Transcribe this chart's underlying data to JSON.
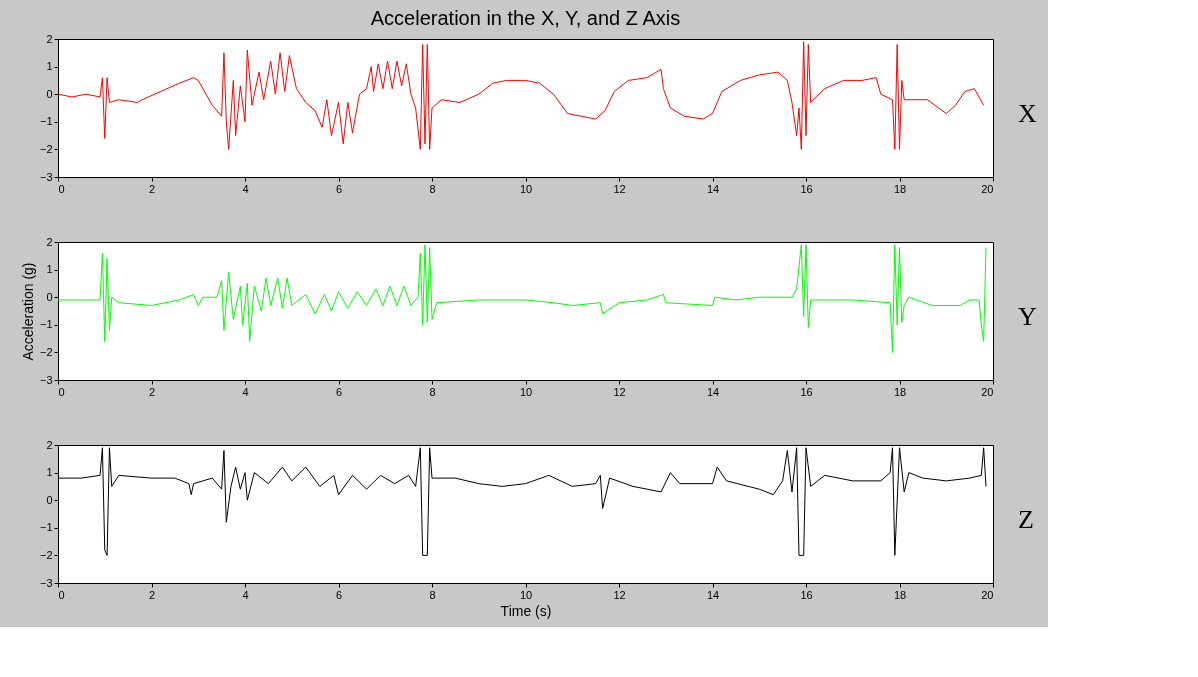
{
  "chart_data": [
    {
      "type": "line",
      "title": "Acceleration in the X, Y, and Z Axis",
      "annotations": [
        "X"
      ],
      "grid": false,
      "xlim": [
        0,
        20
      ],
      "xticks": [
        0,
        2,
        4,
        6,
        8,
        10,
        12,
        14,
        16,
        18,
        20
      ],
      "ylim": [
        -3,
        2
      ],
      "yticks": [
        -3,
        -2,
        -1,
        0,
        1,
        2
      ],
      "x": [
        0,
        0.3,
        0.6,
        0.9,
        0.95,
        1.0,
        1.05,
        1.1,
        1.3,
        1.7,
        1.8,
        2.2,
        2.6,
        2.9,
        3.0,
        3.1,
        3.3,
        3.5,
        3.55,
        3.6,
        3.65,
        3.75,
        3.8,
        3.9,
        4.0,
        4.05,
        4.15,
        4.3,
        4.4,
        4.55,
        4.65,
        4.75,
        4.85,
        4.95,
        5.1,
        5.3,
        5.5,
        5.65,
        5.75,
        5.85,
        6.0,
        6.1,
        6.2,
        6.3,
        6.45,
        6.6,
        6.7,
        6.75,
        6.85,
        6.95,
        7.05,
        7.15,
        7.25,
        7.35,
        7.45,
        7.55,
        7.65,
        7.75,
        7.8,
        7.85,
        7.9,
        7.95,
        8.0,
        8.2,
        8.6,
        9.0,
        9.3,
        9.6,
        10.0,
        10.3,
        10.6,
        10.9,
        11.2,
        11.5,
        11.7,
        11.9,
        12.2,
        12.6,
        12.9,
        12.95,
        13.1,
        13.4,
        13.8,
        14.0,
        14.2,
        14.6,
        15.0,
        15.4,
        15.6,
        15.7,
        15.8,
        15.85,
        15.9,
        15.95,
        16.0,
        16.05,
        16.1,
        16.4,
        16.8,
        17.2,
        17.5,
        17.6,
        17.85,
        17.9,
        17.95,
        18.0,
        18.05,
        18.1,
        18.6,
        19.0,
        19.2,
        19.4,
        19.6,
        19.8
      ],
      "series": [
        {
          "color": "#ff0000",
          "values": [
            0,
            -0.1,
            0,
            -0.1,
            0.6,
            -1.6,
            0.6,
            -0.3,
            -0.2,
            -0.3,
            -0.2,
            0.1,
            0.4,
            0.6,
            0.5,
            0.2,
            -0.4,
            -0.8,
            1.5,
            -1.0,
            -2.0,
            0.5,
            -1.5,
            0.3,
            -1.0,
            1.6,
            -0.4,
            0.8,
            -0.2,
            1.2,
            0,
            1.5,
            0.1,
            1.4,
            0.2,
            -0.3,
            -0.6,
            -1.2,
            -0.2,
            -1.5,
            -0.3,
            -1.8,
            -0.3,
            -1.4,
            0,
            0.2,
            1.0,
            0.1,
            1.1,
            0.2,
            1.2,
            0.2,
            1.2,
            0.3,
            1.1,
            0,
            -0.5,
            -2.0,
            1.8,
            -1.8,
            1.8,
            -2.0,
            -0.5,
            -0.2,
            -0.3,
            0,
            0.4,
            0.5,
            0.5,
            0.4,
            0,
            -0.7,
            -0.8,
            -0.9,
            -0.6,
            0.1,
            0.5,
            0.6,
            0.9,
            0.2,
            -0.5,
            -0.8,
            -0.9,
            -0.7,
            0.1,
            0.5,
            0.7,
            0.8,
            0.5,
            -0.3,
            -1.5,
            -0.5,
            -2.0,
            1.9,
            -1.5,
            1.8,
            -0.3,
            0.2,
            0.5,
            0.5,
            0.6,
            0,
            -0.2,
            -2.0,
            1.8,
            -2.0,
            0.5,
            -0.2,
            -0.2,
            -0.7,
            -0.4,
            0.1,
            0.2,
            -0.4
          ]
        }
      ]
    },
    {
      "type": "line",
      "ylabel": "Acceleration (g)",
      "annotations": [
        "Y"
      ],
      "grid": false,
      "xlim": [
        0,
        20
      ],
      "xticks": [
        0,
        2,
        4,
        6,
        8,
        10,
        12,
        14,
        16,
        18,
        20
      ],
      "ylim": [
        -3,
        2
      ],
      "yticks": [
        -3,
        -2,
        -1,
        0,
        1,
        2
      ],
      "x": [
        0,
        0.3,
        0.9,
        0.95,
        1.0,
        1.05,
        1.1,
        1.15,
        1.3,
        2.0,
        2.6,
        2.9,
        3.0,
        3.1,
        3.4,
        3.5,
        3.55,
        3.65,
        3.75,
        3.9,
        3.95,
        4.05,
        4.1,
        4.2,
        4.35,
        4.45,
        4.55,
        4.7,
        4.8,
        4.9,
        5.0,
        5.3,
        5.5,
        5.7,
        5.85,
        6.0,
        6.2,
        6.4,
        6.6,
        6.8,
        6.95,
        7.1,
        7.25,
        7.4,
        7.55,
        7.7,
        7.75,
        7.8,
        7.85,
        7.9,
        7.95,
        8.0,
        8.1,
        9.0,
        10.0,
        10.6,
        11.0,
        11.6,
        11.65,
        12.0,
        12.6,
        12.95,
        13.0,
        14.0,
        14.05,
        14.5,
        15.0,
        15.7,
        15.8,
        15.9,
        15.95,
        16.0,
        16.05,
        16.1,
        17.0,
        17.8,
        17.85,
        17.9,
        17.95,
        18.0,
        18.05,
        18.1,
        18.2,
        18.7,
        19.3,
        19.5,
        19.7,
        19.75,
        19.8,
        19.85
      ],
      "series": [
        {
          "color": "#00ff00",
          "values": [
            -0.1,
            -0.1,
            -0.1,
            1.6,
            -1.6,
            1.4,
            -1.2,
            0,
            -0.2,
            -0.3,
            -0.1,
            0.1,
            -0.3,
            0,
            0,
            0.6,
            -1.2,
            0.9,
            -0.8,
            0.4,
            -1.0,
            0.5,
            -1.6,
            0.4,
            -0.5,
            0.7,
            -0.3,
            0.7,
            -0.4,
            0.7,
            -0.3,
            0.1,
            -0.6,
            0.1,
            -0.5,
            0.2,
            -0.4,
            0.2,
            -0.3,
            0.3,
            -0.3,
            0.4,
            -0.3,
            0.4,
            -0.3,
            0,
            1.6,
            -1.0,
            1.9,
            -0.9,
            1.8,
            -0.8,
            -0.2,
            -0.1,
            -0.1,
            -0.2,
            -0.3,
            -0.2,
            -0.6,
            -0.2,
            -0.1,
            0.1,
            -0.2,
            -0.3,
            0,
            -0.1,
            0,
            0,
            0.3,
            1.9,
            -0.7,
            1.9,
            -1.1,
            -0.1,
            -0.1,
            -0.2,
            -2.0,
            1.9,
            -1.0,
            1.8,
            -0.9,
            -0.3,
            0,
            -0.3,
            -0.3,
            -0.1,
            -0.1,
            -1.0,
            -1.6,
            1.8
          ]
        }
      ]
    },
    {
      "type": "line",
      "xlabel": "Time (s)",
      "annotations": [
        "Z"
      ],
      "grid": false,
      "xlim": [
        0,
        20
      ],
      "xticks": [
        0,
        2,
        4,
        6,
        8,
        10,
        12,
        14,
        16,
        18,
        20
      ],
      "ylim": [
        -3,
        2
      ],
      "yticks": [
        -3,
        -2,
        -1,
        0,
        1,
        2
      ],
      "x": [
        0,
        0.5,
        0.9,
        0.95,
        1.0,
        1.05,
        1.1,
        1.15,
        1.3,
        2.0,
        2.5,
        2.8,
        2.85,
        2.9,
        3.3,
        3.5,
        3.55,
        3.6,
        3.7,
        3.8,
        3.9,
        4.0,
        4.05,
        4.2,
        4.5,
        4.8,
        5.0,
        5.3,
        5.6,
        5.9,
        6.0,
        6.3,
        6.6,
        6.9,
        7.2,
        7.5,
        7.65,
        7.75,
        7.8,
        7.9,
        7.95,
        8.0,
        8.5,
        9.0,
        9.5,
        10.0,
        10.5,
        11.0,
        11.5,
        11.6,
        11.65,
        11.8,
        12.3,
        12.9,
        13.1,
        13.3,
        14.0,
        14.1,
        14.3,
        15.0,
        15.3,
        15.5,
        15.6,
        15.7,
        15.8,
        15.85,
        15.95,
        16.0,
        16.1,
        16.4,
        17.0,
        17.6,
        17.8,
        17.85,
        17.9,
        18.0,
        18.1,
        18.2,
        18.5,
        19.0,
        19.5,
        19.75,
        19.8,
        19.85
      ],
      "series": [
        {
          "color": "#000000",
          "values": [
            0.8,
            0.8,
            0.9,
            1.9,
            -1.8,
            -2.0,
            1.9,
            0.5,
            0.9,
            0.8,
            0.8,
            0.6,
            0.2,
            0.6,
            0.8,
            0.4,
            1.8,
            -0.8,
            0.5,
            1.2,
            0.4,
            1.0,
            0,
            1.0,
            0.6,
            1.2,
            0.7,
            1.2,
            0.5,
            0.9,
            0.2,
            0.9,
            0.4,
            0.9,
            0.6,
            0.9,
            0.5,
            1.9,
            -2.0,
            -2.0,
            1.9,
            0.8,
            0.8,
            0.6,
            0.5,
            0.6,
            0.9,
            0.5,
            0.6,
            0.9,
            -0.3,
            0.8,
            0.5,
            0.3,
            1.0,
            0.6,
            0.6,
            1.2,
            0.7,
            0.4,
            0.2,
            0.7,
            1.8,
            0.3,
            1.9,
            -2.0,
            -2.0,
            1.9,
            0.5,
            0.9,
            0.7,
            0.7,
            1.0,
            1.9,
            -2.0,
            1.9,
            0.3,
            1.0,
            0.8,
            0.7,
            0.8,
            0.9,
            1.9,
            0.5
          ]
        }
      ]
    }
  ]
}
